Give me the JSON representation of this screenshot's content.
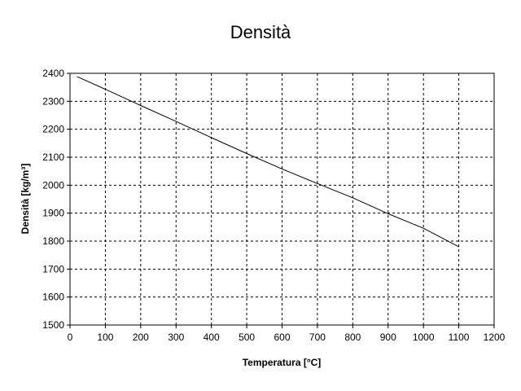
{
  "chart_data": {
    "type": "line",
    "title": "Densità",
    "xlabel": "Temperatura [°C]",
    "ylabel": "Densità [kg/m³]",
    "xlim": [
      0,
      1200
    ],
    "ylim": [
      1500,
      2400
    ],
    "x_ticks": [
      0,
      100,
      200,
      300,
      400,
      500,
      600,
      700,
      800,
      900,
      1000,
      1100,
      1200
    ],
    "y_ticks": [
      1500,
      1600,
      1700,
      1800,
      1900,
      2000,
      2100,
      2200,
      2300,
      2400
    ],
    "grid": true,
    "legend": "none",
    "series": [
      {
        "x": [
          20,
          100,
          200,
          300,
          400,
          500,
          600,
          700,
          800,
          900,
          1000,
          1100
        ],
        "y": [
          2388,
          2343,
          2285,
          2228,
          2170,
          2113,
          2058,
          2006,
          1955,
          1898,
          1846,
          1780
        ],
        "color": "#000000"
      }
    ]
  }
}
